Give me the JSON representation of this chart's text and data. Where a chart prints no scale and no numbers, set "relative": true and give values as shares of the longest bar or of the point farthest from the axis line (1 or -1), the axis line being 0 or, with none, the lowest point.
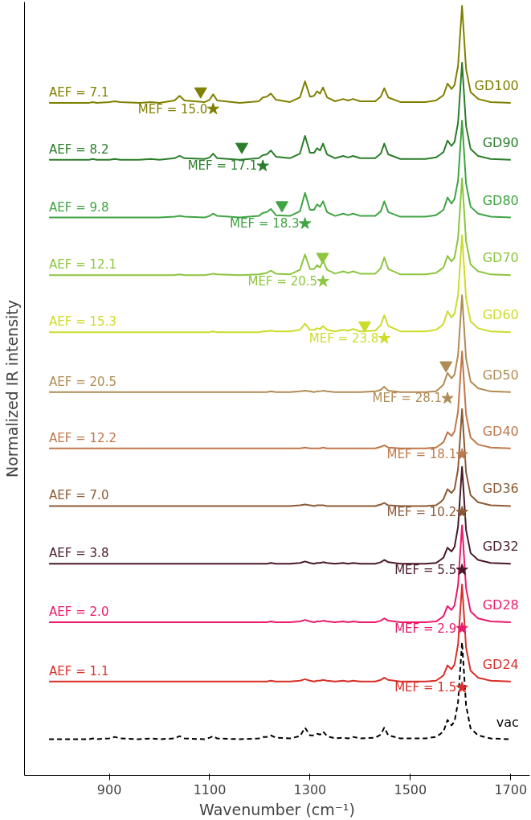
{
  "chart_data": {
    "type": "line",
    "relative": true,
    "xlabel": "Wavenumber (cm⁻¹)",
    "ylabel": "Normalized IR intensity",
    "xlim": [
      731,
      1738
    ],
    "xticks": [
      900,
      1100,
      1300,
      1500,
      1700
    ],
    "grid": false,
    "legend": false,
    "marker": "none",
    "x": [
      780,
      860,
      867,
      875,
      900,
      911,
      922,
      960,
      983,
      1000,
      1030,
      1040,
      1050,
      1090,
      1100,
      1107,
      1115,
      1160,
      1198,
      1206,
      1214,
      1222,
      1232,
      1260,
      1280,
      1290,
      1300,
      1308,
      1314,
      1320,
      1326,
      1334,
      1350,
      1366,
      1376,
      1386,
      1400,
      1430,
      1441,
      1448,
      1456,
      1480,
      1530,
      1551,
      1560,
      1566,
      1574,
      1582,
      1588,
      1595,
      1603,
      1611,
      1620,
      1635,
      1660,
      1700
    ],
    "series": [
      {
        "name": "GD100",
        "color": "#808000",
        "line_style": "solid",
        "values": [
          0.874,
          0.874,
          0.875,
          0.874,
          0.875,
          0.876,
          0.875,
          0.874,
          0.875,
          0.874,
          0.877,
          0.883,
          0.877,
          0.875,
          0.878,
          0.885,
          0.877,
          0.874,
          0.876,
          0.881,
          0.882,
          0.886,
          0.878,
          0.875,
          0.881,
          0.902,
          0.882,
          0.883,
          0.889,
          0.886,
          0.894,
          0.881,
          0.876,
          0.879,
          0.877,
          0.879,
          0.876,
          0.876,
          0.882,
          0.893,
          0.881,
          0.875,
          0.875,
          0.877,
          0.881,
          0.884,
          0.899,
          0.892,
          0.897,
          0.922,
          1.0,
          0.918,
          0.888,
          0.879,
          0.875,
          0.874
        ]
      },
      {
        "name": "GD90",
        "color": "#2a7e2a",
        "line_style": "solid",
        "values": [
          0.8,
          0.8,
          0.801,
          0.8,
          0.8,
          0.801,
          0.8,
          0.8,
          0.801,
          0.8,
          0.802,
          0.805,
          0.802,
          0.801,
          0.803,
          0.808,
          0.802,
          0.8,
          0.802,
          0.806,
          0.807,
          0.812,
          0.804,
          0.802,
          0.808,
          0.831,
          0.809,
          0.809,
          0.815,
          0.812,
          0.821,
          0.807,
          0.802,
          0.805,
          0.803,
          0.805,
          0.802,
          0.802,
          0.808,
          0.821,
          0.807,
          0.801,
          0.801,
          0.803,
          0.807,
          0.81,
          0.825,
          0.818,
          0.823,
          0.848,
          0.926,
          0.844,
          0.814,
          0.805,
          0.801,
          0.8
        ]
      },
      {
        "name": "GD80",
        "color": "#3fa442",
        "line_style": "solid",
        "values": [
          0.725,
          0.725,
          0.725,
          0.725,
          0.725,
          0.725,
          0.725,
          0.725,
          0.725,
          0.725,
          0.726,
          0.727,
          0.726,
          0.725,
          0.727,
          0.73,
          0.727,
          0.725,
          0.727,
          0.731,
          0.732,
          0.736,
          0.728,
          0.727,
          0.733,
          0.757,
          0.735,
          0.735,
          0.742,
          0.739,
          0.746,
          0.732,
          0.727,
          0.73,
          0.728,
          0.73,
          0.727,
          0.727,
          0.733,
          0.746,
          0.732,
          0.726,
          0.726,
          0.728,
          0.732,
          0.735,
          0.751,
          0.743,
          0.749,
          0.773,
          0.851,
          0.769,
          0.739,
          0.73,
          0.726,
          0.725
        ]
      },
      {
        "name": "GD70",
        "color": "#8cc63f",
        "line_style": "solid",
        "values": [
          0.65,
          0.65,
          0.65,
          0.65,
          0.65,
          0.65,
          0.65,
          0.65,
          0.65,
          0.65,
          0.65,
          0.651,
          0.65,
          0.65,
          0.651,
          0.652,
          0.651,
          0.65,
          0.651,
          0.652,
          0.653,
          0.656,
          0.652,
          0.651,
          0.657,
          0.677,
          0.658,
          0.658,
          0.663,
          0.66,
          0.669,
          0.657,
          0.652,
          0.655,
          0.653,
          0.655,
          0.652,
          0.652,
          0.659,
          0.673,
          0.658,
          0.651,
          0.651,
          0.653,
          0.657,
          0.66,
          0.675,
          0.668,
          0.673,
          0.698,
          0.776,
          0.694,
          0.664,
          0.655,
          0.651,
          0.65
        ]
      },
      {
        "name": "GD60",
        "color": "#cddc2b",
        "line_style": "solid",
        "values": [
          0.576,
          0.576,
          0.576,
          0.576,
          0.576,
          0.576,
          0.576,
          0.576,
          0.576,
          0.576,
          0.576,
          0.576,
          0.576,
          0.576,
          0.576,
          0.577,
          0.576,
          0.576,
          0.576,
          0.577,
          0.577,
          0.578,
          0.577,
          0.577,
          0.579,
          0.587,
          0.579,
          0.579,
          0.581,
          0.58,
          0.584,
          0.579,
          0.577,
          0.579,
          0.578,
          0.58,
          0.577,
          0.578,
          0.585,
          0.598,
          0.584,
          0.577,
          0.577,
          0.579,
          0.583,
          0.587,
          0.603,
          0.595,
          0.6,
          0.624,
          0.702,
          0.62,
          0.59,
          0.581,
          0.577,
          0.576
        ]
      },
      {
        "name": "GD50",
        "color": "#b08c55",
        "line_style": "solid",
        "values": [
          0.498,
          0.498,
          0.498,
          0.498,
          0.498,
          0.498,
          0.498,
          0.498,
          0.498,
          0.498,
          0.498,
          0.498,
          0.498,
          0.498,
          0.498,
          0.498,
          0.498,
          0.498,
          0.498,
          0.498,
          0.498,
          0.499,
          0.498,
          0.498,
          0.499,
          0.5,
          0.499,
          0.498,
          0.499,
          0.499,
          0.5,
          0.499,
          0.498,
          0.498,
          0.498,
          0.498,
          0.498,
          0.499,
          0.501,
          0.505,
          0.5,
          0.498,
          0.498,
          0.499,
          0.504,
          0.508,
          0.523,
          0.516,
          0.521,
          0.546,
          0.624,
          0.542,
          0.512,
          0.503,
          0.499,
          0.498
        ]
      },
      {
        "name": "GD40",
        "color": "#c0784a",
        "line_style": "solid",
        "values": [
          0.425,
          0.425,
          0.425,
          0.425,
          0.425,
          0.425,
          0.425,
          0.425,
          0.425,
          0.425,
          0.425,
          0.425,
          0.425,
          0.425,
          0.425,
          0.425,
          0.425,
          0.425,
          0.425,
          0.425,
          0.425,
          0.425,
          0.425,
          0.425,
          0.425,
          0.426,
          0.425,
          0.425,
          0.425,
          0.425,
          0.426,
          0.425,
          0.425,
          0.425,
          0.425,
          0.425,
          0.425,
          0.425,
          0.427,
          0.429,
          0.426,
          0.425,
          0.425,
          0.426,
          0.43,
          0.433,
          0.446,
          0.441,
          0.447,
          0.473,
          0.551,
          0.469,
          0.439,
          0.43,
          0.426,
          0.425
        ]
      },
      {
        "name": "GD36",
        "color": "#8b5a35",
        "line_style": "solid",
        "values": [
          0.35,
          0.35,
          0.35,
          0.35,
          0.35,
          0.35,
          0.35,
          0.35,
          0.35,
          0.35,
          0.35,
          0.35,
          0.35,
          0.35,
          0.35,
          0.35,
          0.35,
          0.35,
          0.35,
          0.35,
          0.35,
          0.35,
          0.35,
          0.35,
          0.351,
          0.352,
          0.351,
          0.35,
          0.351,
          0.351,
          0.351,
          0.35,
          0.35,
          0.35,
          0.35,
          0.35,
          0.35,
          0.35,
          0.352,
          0.354,
          0.351,
          0.35,
          0.35,
          0.351,
          0.355,
          0.359,
          0.372,
          0.367,
          0.372,
          0.398,
          0.476,
          0.394,
          0.364,
          0.355,
          0.351,
          0.35
        ]
      },
      {
        "name": "GD32",
        "color": "#4a1a28",
        "line_style": "solid",
        "values": [
          0.275,
          0.275,
          0.275,
          0.275,
          0.275,
          0.275,
          0.275,
          0.275,
          0.275,
          0.275,
          0.275,
          0.275,
          0.275,
          0.275,
          0.275,
          0.275,
          0.275,
          0.275,
          0.275,
          0.275,
          0.275,
          0.276,
          0.275,
          0.275,
          0.276,
          0.278,
          0.276,
          0.275,
          0.276,
          0.276,
          0.277,
          0.276,
          0.275,
          0.276,
          0.275,
          0.276,
          0.275,
          0.275,
          0.277,
          0.28,
          0.277,
          0.275,
          0.275,
          0.276,
          0.28,
          0.283,
          0.296,
          0.291,
          0.297,
          0.323,
          0.401,
          0.319,
          0.289,
          0.28,
          0.276,
          0.275
        ]
      },
      {
        "name": "GD28",
        "color": "#eb1a6b",
        "line_style": "solid",
        "values": [
          0.199,
          0.199,
          0.199,
          0.199,
          0.199,
          0.199,
          0.199,
          0.199,
          0.199,
          0.199,
          0.199,
          0.199,
          0.199,
          0.199,
          0.199,
          0.199,
          0.199,
          0.199,
          0.199,
          0.199,
          0.199,
          0.2,
          0.199,
          0.199,
          0.2,
          0.202,
          0.2,
          0.199,
          0.2,
          0.2,
          0.201,
          0.2,
          0.199,
          0.2,
          0.199,
          0.2,
          0.199,
          0.199,
          0.201,
          0.204,
          0.201,
          0.199,
          0.199,
          0.2,
          0.204,
          0.207,
          0.22,
          0.215,
          0.221,
          0.247,
          0.325,
          0.243,
          0.213,
          0.204,
          0.2,
          0.199
        ]
      },
      {
        "name": "GD24",
        "color": "#d9302a",
        "line_style": "solid",
        "values": [
          0.122,
          0.122,
          0.122,
          0.122,
          0.122,
          0.122,
          0.122,
          0.122,
          0.122,
          0.122,
          0.122,
          0.122,
          0.122,
          0.122,
          0.122,
          0.122,
          0.122,
          0.122,
          0.122,
          0.122,
          0.122,
          0.123,
          0.122,
          0.122,
          0.123,
          0.125,
          0.123,
          0.122,
          0.123,
          0.123,
          0.124,
          0.123,
          0.122,
          0.123,
          0.122,
          0.123,
          0.122,
          0.122,
          0.124,
          0.127,
          0.124,
          0.122,
          0.122,
          0.123,
          0.127,
          0.13,
          0.143,
          0.138,
          0.144,
          0.17,
          0.248,
          0.166,
          0.136,
          0.127,
          0.123,
          0.122
        ]
      },
      {
        "name": "vac",
        "color": "#000000",
        "line_style": "dashed",
        "values": [
          0.047,
          0.047,
          0.048,
          0.047,
          0.048,
          0.05,
          0.048,
          0.047,
          0.048,
          0.047,
          0.048,
          0.051,
          0.048,
          0.047,
          0.049,
          0.051,
          0.048,
          0.047,
          0.048,
          0.05,
          0.05,
          0.052,
          0.049,
          0.048,
          0.051,
          0.062,
          0.052,
          0.052,
          0.054,
          0.053,
          0.057,
          0.051,
          0.048,
          0.049,
          0.048,
          0.05,
          0.048,
          0.049,
          0.053,
          0.062,
          0.052,
          0.048,
          0.048,
          0.05,
          0.054,
          0.057,
          0.072,
          0.065,
          0.07,
          0.095,
          0.173,
          0.091,
          0.061,
          0.052,
          0.048,
          0.047
        ]
      },
      {
        "type": "scatter",
        "marker": "star",
        "x": [
          1107,
          1206,
          1290,
          1326,
          1448,
          1574,
          1603,
          1603,
          1603,
          1603,
          1603
        ],
        "values": [
          0.866,
          0.792,
          0.717,
          0.642,
          0.568,
          0.49,
          0.417,
          0.342,
          0.267,
          0.191,
          0.114
        ],
        "colors": [
          "#808000",
          "#2a7e2a",
          "#3fa442",
          "#8cc63f",
          "#cddc2b",
          "#b08c55",
          "#c0784a",
          "#8b5a35",
          "#4a1a28",
          "#eb1a6b",
          "#d9302a"
        ]
      },
      {
        "type": "scatter",
        "marker": "triangle",
        "x": [
          1082,
          1164,
          1244,
          1325,
          1409,
          1571
        ],
        "values": [
          0.889,
          0.817,
          0.741,
          0.674,
          0.585,
          0.533
        ],
        "colors": [
          "#808000",
          "#2a7e2a",
          "#3fa442",
          "#8cc63f",
          "#cddc2b",
          "#b08c55"
        ]
      }
    ],
    "annotations": [
      "AEF = 7.1",
      "MEF = 15.0",
      "AEF = 8.2",
      "MEF = 17.1",
      "AEF = 9.8",
      "MEF = 18.3",
      "AEF = 12.1",
      "MEF = 20.5",
      "AEF = 15.3",
      "MEF = 23.8",
      "AEF = 20.5",
      "MEF = 28.1",
      "AEF = 12.2",
      "MEF = 18.1",
      "AEF = 7.0",
      "MEF = 10.2",
      "AEF = 3.8",
      "MEF = 5.5",
      "AEF = 2.0",
      "MEF = 2.9",
      "AEF = 1.1",
      "MEF = 1.5"
    ]
  }
}
